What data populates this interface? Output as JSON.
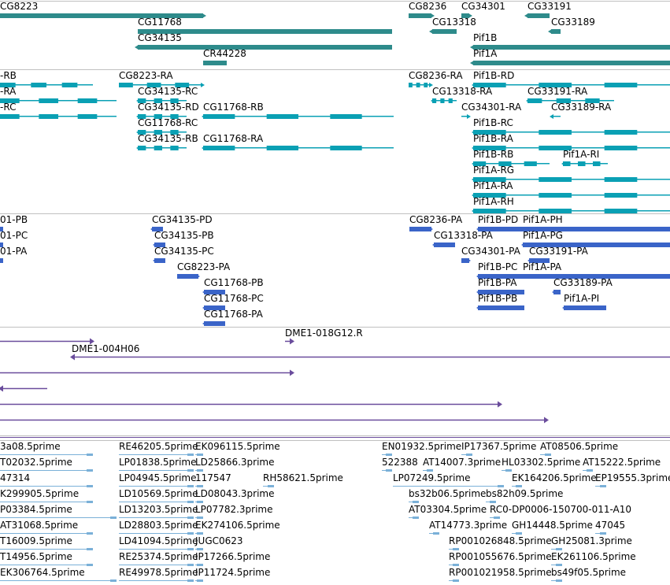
{
  "colors": {
    "gene": "#2e8b8b",
    "transcript": "#0aa0b4",
    "protein": "#3a64c8",
    "clone": "#6a4c9c",
    "est": "#7ab0d8",
    "divider": "#c0c0c0"
  },
  "tracks": [
    {
      "name": "gene-track",
      "kind": "gene",
      "features": [
        {
          "label": "CG8223",
          "start": 0,
          "end": 258,
          "row": 0,
          "dir": "plus"
        },
        {
          "label": "CG11768",
          "start": 175,
          "end": 498,
          "row": 1,
          "dir": "none"
        },
        {
          "label": "CG34135",
          "start": 175,
          "end": 498,
          "row": 2,
          "dir": "minus"
        },
        {
          "label": "CR44228",
          "start": 258,
          "end": 288,
          "row": 3,
          "dir": "none"
        },
        {
          "label": "CG8236",
          "start": 519,
          "end": 548,
          "row": 0,
          "dir": "plus"
        },
        {
          "label": "CG13318",
          "start": 549,
          "end": 580,
          "row": 1,
          "dir": "minus"
        },
        {
          "label": "CG34301",
          "start": 586,
          "end": 596,
          "row": 0,
          "dir": "plus"
        },
        {
          "label": "CG33191",
          "start": 670,
          "end": 698,
          "row": 0,
          "dir": "minus"
        },
        {
          "label": "CG33189",
          "start": 700,
          "end": 712,
          "row": 1,
          "dir": "minus"
        },
        {
          "label": "Pif1B",
          "start": 601,
          "end": 851,
          "row": 2,
          "dir": "minus"
        },
        {
          "label": "Pif1A",
          "start": 601,
          "end": 851,
          "row": 3,
          "dir": "minus"
        }
      ]
    },
    {
      "name": "transcript-track",
      "kind": "transcript",
      "features": [
        {
          "label": "-RB",
          "start": 0,
          "end": 118,
          "row": 0,
          "dir": "minus"
        },
        {
          "label": "-RA",
          "start": 0,
          "end": 148,
          "row": 1,
          "dir": "minus"
        },
        {
          "label": "-RC",
          "start": 0,
          "end": 148,
          "row": 2,
          "dir": "minus"
        },
        {
          "label": "CG8223-RA",
          "start": 151,
          "end": 258,
          "row": 0,
          "dir": "plus"
        },
        {
          "label": "CG34135-RC",
          "start": 175,
          "end": 237,
          "row": 1,
          "dir": "minus"
        },
        {
          "label": "CG34135-RD",
          "start": 175,
          "end": 237,
          "row": 2,
          "dir": "minus"
        },
        {
          "label": "CG11768-RB",
          "start": 258,
          "end": 500,
          "row": 2,
          "dir": "minus"
        },
        {
          "label": "CG11768-RC",
          "start": 175,
          "end": 237,
          "row": 3,
          "dir": "minus"
        },
        {
          "label": "CG34135-RB",
          "start": 175,
          "end": 237,
          "row": 4,
          "dir": "minus"
        },
        {
          "label": "CG11768-RA",
          "start": 258,
          "end": 500,
          "row": 4,
          "dir": "minus"
        },
        {
          "label": "CG8236-RA",
          "start": 519,
          "end": 548,
          "row": 0,
          "dir": "plus"
        },
        {
          "label": "Pif1B-RD",
          "start": 601,
          "end": 851,
          "row": 0,
          "dir": "minus"
        },
        {
          "label": "CG13318-RA",
          "start": 549,
          "end": 580,
          "row": 1,
          "dir": "minus"
        },
        {
          "label": "CG33191-RA",
          "start": 670,
          "end": 780,
          "row": 1,
          "dir": "minus"
        },
        {
          "label": "CG34301-RA",
          "start": 586,
          "end": 596,
          "row": 2,
          "dir": "plus"
        },
        {
          "label": "CG33189-RA",
          "start": 700,
          "end": 712,
          "row": 2,
          "dir": "minus"
        },
        {
          "label": "Pif1B-RC",
          "start": 601,
          "end": 851,
          "row": 3,
          "dir": "minus"
        },
        {
          "label": "Pif1B-RA",
          "start": 601,
          "end": 851,
          "row": 4,
          "dir": "minus"
        },
        {
          "label": "Pif1B-RB",
          "start": 601,
          "end": 698,
          "row": 5,
          "dir": "minus"
        },
        {
          "label": "Pif1A-RI",
          "start": 715,
          "end": 772,
          "row": 5,
          "dir": "minus"
        },
        {
          "label": "Pif1A-RG",
          "start": 601,
          "end": 851,
          "row": 6,
          "dir": "minus"
        },
        {
          "label": "Pif1A-RA",
          "start": 601,
          "end": 851,
          "row": 7,
          "dir": "minus"
        },
        {
          "label": "Pif1A-RH",
          "start": 601,
          "end": 851,
          "row": 8,
          "dir": "minus"
        }
      ]
    },
    {
      "name": "protein-track",
      "kind": "protein",
      "features": [
        {
          "label": "01-PB",
          "start": 0,
          "end": 4,
          "row": 0,
          "dir": "none"
        },
        {
          "label": "01-PC",
          "start": 0,
          "end": 4,
          "row": 1,
          "dir": "none"
        },
        {
          "label": "01-PA",
          "start": 0,
          "end": 4,
          "row": 2,
          "dir": "none"
        },
        {
          "label": "CG34135-PD",
          "start": 193,
          "end": 207,
          "row": 0,
          "dir": "minus"
        },
        {
          "label": "CG34135-PB",
          "start": 196,
          "end": 210,
          "row": 1,
          "dir": "minus"
        },
        {
          "label": "CG34135-PC",
          "start": 196,
          "end": 210,
          "row": 2,
          "dir": "minus"
        },
        {
          "label": "CG8223-PA",
          "start": 225,
          "end": 252,
          "row": 3,
          "dir": "plus"
        },
        {
          "label": "CG11768-PB",
          "start": 259,
          "end": 286,
          "row": 4,
          "dir": "minus"
        },
        {
          "label": "CG11768-PC",
          "start": 259,
          "end": 286,
          "row": 5,
          "dir": "minus"
        },
        {
          "label": "CG11768-PA",
          "start": 259,
          "end": 286,
          "row": 6,
          "dir": "minus"
        },
        {
          "label": "CG8236-PA",
          "start": 520,
          "end": 548,
          "row": 0,
          "dir": "plus"
        },
        {
          "label": "Pif1B-PD",
          "start": 607,
          "end": 666,
          "row": 0,
          "dir": "minus"
        },
        {
          "label": "Pif1A-PH",
          "start": 664,
          "end": 851,
          "row": 0,
          "dir": "minus"
        },
        {
          "label": "CG13318-PA",
          "start": 551,
          "end": 578,
          "row": 1,
          "dir": "minus"
        },
        {
          "label": "Pif1A-PG",
          "start": 664,
          "end": 851,
          "row": 1,
          "dir": "minus"
        },
        {
          "label": "CG34301-PA",
          "start": 586,
          "end": 596,
          "row": 2,
          "dir": "plus"
        },
        {
          "label": "CG33191-PA",
          "start": 672,
          "end": 698,
          "row": 2,
          "dir": "minus"
        },
        {
          "label": "Pif1B-PC",
          "start": 607,
          "end": 851,
          "row": 3,
          "dir": "minus"
        },
        {
          "label": "Pif1A-PA",
          "start": 664,
          "end": 851,
          "row": 3,
          "dir": "minus"
        },
        {
          "label": "Pif1B-PA",
          "start": 607,
          "end": 666,
          "row": 4,
          "dir": "minus"
        },
        {
          "label": "CG33189-PA",
          "start": 703,
          "end": 712,
          "row": 4,
          "dir": "minus"
        },
        {
          "label": "Pif1B-PB",
          "start": 607,
          "end": 666,
          "row": 5,
          "dir": "minus"
        },
        {
          "label": "Pif1A-PI",
          "start": 716,
          "end": 770,
          "row": 5,
          "dir": "minus"
        }
      ]
    },
    {
      "name": "clone-track",
      "kind": "clone",
      "features": [
        {
          "label": "DME1-018G12.R",
          "start": 362,
          "end": 372,
          "row": 0,
          "dir": "plus"
        },
        {
          "label": "",
          "start": 0,
          "end": 118,
          "row": 0,
          "dir": "plus"
        },
        {
          "label": "DME1-004H06",
          "start": 91,
          "end": 851,
          "row": 1,
          "dir": "minus"
        },
        {
          "label": "",
          "start": 0,
          "end": 372,
          "row": 2,
          "dir": "plus"
        },
        {
          "label": "",
          "start": 0,
          "end": 60,
          "row": 3,
          "dir": "minus"
        },
        {
          "label": "",
          "start": 0,
          "end": 636,
          "row": 4,
          "dir": "plus"
        },
        {
          "label": "",
          "start": 0,
          "end": 695,
          "row": 5,
          "dir": "plus"
        }
      ]
    },
    {
      "name": "est-track",
      "kind": "est",
      "features": [
        {
          "label": "3a08.5prime",
          "start": 0,
          "end": 118,
          "row": 0
        },
        {
          "label": "RE46205.5prime",
          "start": 151,
          "end": 246,
          "row": 0
        },
        {
          "label": "EK096115.5prime",
          "start": 248,
          "end": 258,
          "row": 0
        },
        {
          "label": "EN01932.5prime",
          "start": 485,
          "end": 498,
          "row": 0
        },
        {
          "label": "IP17367.5prime",
          "start": 586,
          "end": 600,
          "row": 0
        },
        {
          "label": "AT08506.5prime",
          "start": 686,
          "end": 700,
          "row": 0
        },
        {
          "label": "T02032.5prime",
          "start": 0,
          "end": 118,
          "row": 1
        },
        {
          "label": "LP01838.5prime",
          "start": 151,
          "end": 246,
          "row": 1
        },
        {
          "label": "LD25866.3prime",
          "start": 248,
          "end": 258,
          "row": 1
        },
        {
          "label": "522388",
          "start": 485,
          "end": 498,
          "row": 1
        },
        {
          "label": "AT14007.3prime",
          "start": 537,
          "end": 550,
          "row": 1
        },
        {
          "label": "HL03302.5prime",
          "start": 637,
          "end": 650,
          "row": 1
        },
        {
          "label": "AT15222.5prime",
          "start": 740,
          "end": 753,
          "row": 1
        },
        {
          "label": "47314",
          "start": 0,
          "end": 118,
          "row": 2
        },
        {
          "label": "LP04945.5prime",
          "start": 151,
          "end": 246,
          "row": 2
        },
        {
          "label": "117547",
          "start": 248,
          "end": 258,
          "row": 2
        },
        {
          "label": "RH58621.5prime",
          "start": 334,
          "end": 348,
          "row": 2
        },
        {
          "label": "LP07249.5prime",
          "start": 499,
          "end": 640,
          "row": 2
        },
        {
          "label": "EK164206.5prime",
          "start": 650,
          "end": 663,
          "row": 2
        },
        {
          "label": "EP19555.3prime",
          "start": 756,
          "end": 770,
          "row": 2
        },
        {
          "label": "K299905.5prime",
          "start": 0,
          "end": 118,
          "row": 3
        },
        {
          "label": "LD10569.5prime",
          "start": 151,
          "end": 246,
          "row": 3
        },
        {
          "label": "LD08043.3prime",
          "start": 248,
          "end": 258,
          "row": 3
        },
        {
          "label": "bs32b06.5prime",
          "start": 519,
          "end": 532,
          "row": 3
        },
        {
          "label": "bs82h09.5prime",
          "start": 617,
          "end": 630,
          "row": 3
        },
        {
          "label": "P03384.5prime",
          "start": 0,
          "end": 148,
          "row": 4
        },
        {
          "label": "LD13203.5prime",
          "start": 151,
          "end": 246,
          "row": 4
        },
        {
          "label": "LP07782.3prime",
          "start": 248,
          "end": 258,
          "row": 4
        },
        {
          "label": "AT03304.5prime",
          "start": 519,
          "end": 532,
          "row": 4
        },
        {
          "label": "RC0-DP0006-150700-011-A10",
          "start": 622,
          "end": 635,
          "row": 4
        },
        {
          "label": "AT31068.5prime",
          "start": 0,
          "end": 118,
          "row": 5
        },
        {
          "label": "LD28803.5prime",
          "start": 151,
          "end": 246,
          "row": 5
        },
        {
          "label": "EK274106.5prime",
          "start": 248,
          "end": 258,
          "row": 5
        },
        {
          "label": "AT14773.3prime",
          "start": 545,
          "end": 558,
          "row": 5
        },
        {
          "label": "GH14448.5prime",
          "start": 650,
          "end": 663,
          "row": 5
        },
        {
          "label": "47045",
          "start": 756,
          "end": 770,
          "row": 5
        },
        {
          "label": "T16009.5prime",
          "start": 0,
          "end": 118,
          "row": 6
        },
        {
          "label": "LD41094.5prime",
          "start": 151,
          "end": 246,
          "row": 6
        },
        {
          "label": "JUGC0623",
          "start": 248,
          "end": 258,
          "row": 6
        },
        {
          "label": "RP001026848.5prime",
          "start": 570,
          "end": 583,
          "row": 6
        },
        {
          "label": "GH25081.3prime",
          "start": 700,
          "end": 714,
          "row": 6
        },
        {
          "label": "T14956.5prime",
          "start": 0,
          "end": 118,
          "row": 7
        },
        {
          "label": "RE25374.5prime",
          "start": 151,
          "end": 246,
          "row": 7
        },
        {
          "label": "IP17266.5prime",
          "start": 248,
          "end": 258,
          "row": 7
        },
        {
          "label": "RP001055676.5prime",
          "start": 570,
          "end": 583,
          "row": 7
        },
        {
          "label": "EK261106.5prime",
          "start": 700,
          "end": 714,
          "row": 7
        },
        {
          "label": "EK306764.5prime",
          "start": 0,
          "end": 148,
          "row": 8
        },
        {
          "label": "RE49978.5prime",
          "start": 151,
          "end": 246,
          "row": 8
        },
        {
          "label": "IP11724.5prime",
          "start": 248,
          "end": 258,
          "row": 8
        },
        {
          "label": "RP001021958.5prime",
          "start": 570,
          "end": 583,
          "row": 8
        },
        {
          "label": "bs49f05.5prime",
          "start": 700,
          "end": 714,
          "row": 8
        }
      ]
    }
  ]
}
